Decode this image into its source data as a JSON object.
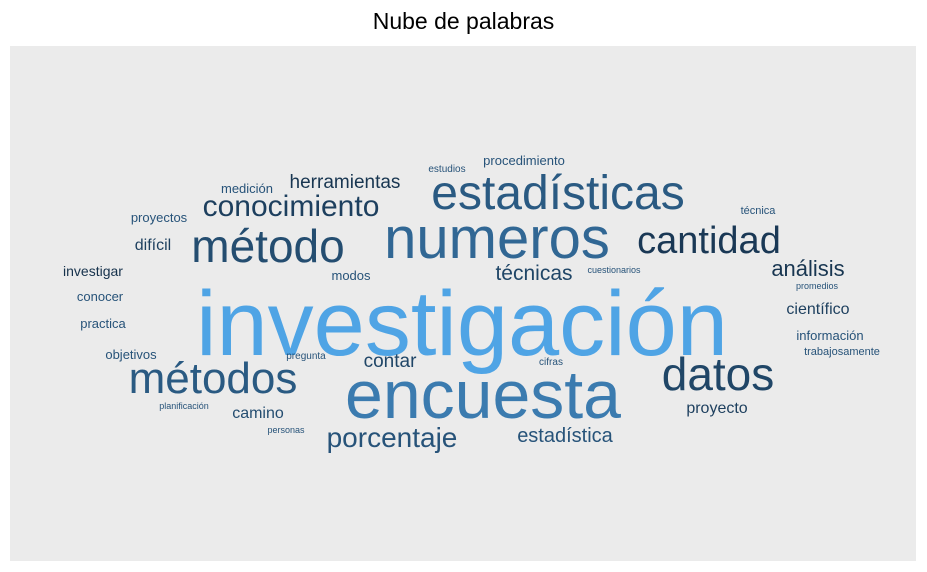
{
  "chart_data": {
    "type": "wordcloud",
    "title": "Nube de palabras",
    "background": "#ebebeb",
    "color_scale": {
      "low": "#132b43",
      "high": "#56b1f7"
    },
    "words": [
      {
        "text": "investigación",
        "freq": 10
      },
      {
        "text": "encuesta",
        "freq": 6
      },
      {
        "text": "numeros",
        "freq": 5
      },
      {
        "text": "estadísticas",
        "freq": 4
      },
      {
        "text": "método",
        "freq": 4
      },
      {
        "text": "métodos",
        "freq": 4
      },
      {
        "text": "datos",
        "freq": 4
      },
      {
        "text": "cantidad",
        "freq": 3
      },
      {
        "text": "conocimiento",
        "freq": 3
      },
      {
        "text": "porcentaje",
        "freq": 3
      },
      {
        "text": "análisis",
        "freq": 2
      },
      {
        "text": "técnicas",
        "freq": 2
      },
      {
        "text": "herramientas",
        "freq": 2
      },
      {
        "text": "estadística",
        "freq": 2
      },
      {
        "text": "contar",
        "freq": 2
      },
      {
        "text": "difícil",
        "freq": 2
      },
      {
        "text": "camino",
        "freq": 2
      },
      {
        "text": "proyecto",
        "freq": 2
      },
      {
        "text": "científico",
        "freq": 2
      },
      {
        "text": "investigar",
        "freq": 2
      },
      {
        "text": "medición",
        "freq": 1
      },
      {
        "text": "procedimiento",
        "freq": 1
      },
      {
        "text": "proyectos",
        "freq": 1
      },
      {
        "text": "conocer",
        "freq": 1
      },
      {
        "text": "practica",
        "freq": 1
      },
      {
        "text": "objetivos",
        "freq": 1
      },
      {
        "text": "modos",
        "freq": 1
      },
      {
        "text": "información",
        "freq": 1
      },
      {
        "text": "técnica",
        "freq": 1
      },
      {
        "text": "estudios",
        "freq": 1
      },
      {
        "text": "cuestionarios",
        "freq": 1
      },
      {
        "text": "promedios",
        "freq": 1
      },
      {
        "text": "trabajosamente",
        "freq": 1
      },
      {
        "text": "pregunta",
        "freq": 1
      },
      {
        "text": "cifras",
        "freq": 1
      },
      {
        "text": "planificación",
        "freq": 1
      },
      {
        "text": "personas",
        "freq": 1
      }
    ]
  }
}
